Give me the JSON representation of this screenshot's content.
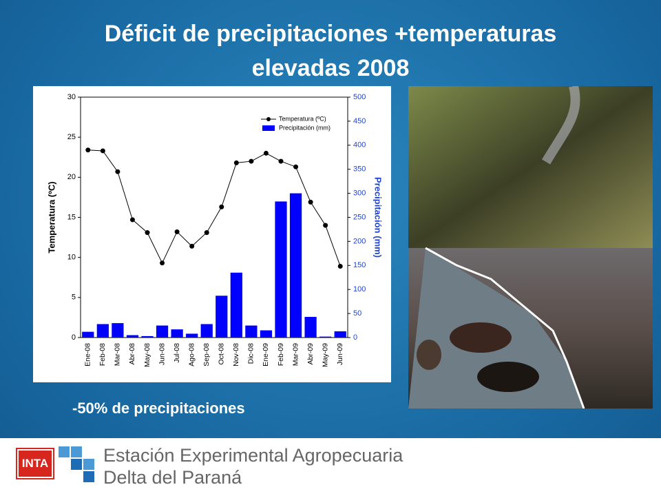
{
  "title": [
    "Déficit de precipitaciones +temperaturas",
    "elevadas 2008"
  ],
  "chart_data": {
    "type": "combo",
    "categories": [
      "Ene-08",
      "Feb-08",
      "Mar-08",
      "Abr-08",
      "May-08",
      "Jun-08",
      "Jul-08",
      "Ago-08",
      "Sep-08",
      "Oct-08",
      "Nov-08",
      "Dic-08",
      "Ene-09",
      "Feb-09",
      "Mar-09",
      "Abr-09",
      "May-09",
      "Jun-09"
    ],
    "series": [
      {
        "name": "Temperatura (ºC)",
        "type": "line",
        "color": "#000000",
        "axis": "y",
        "values": [
          23.4,
          23.3,
          20.7,
          14.7,
          13.1,
          9.3,
          13.2,
          11.4,
          13.1,
          16.3,
          21.8,
          22.0,
          23.0,
          22.0,
          21.3,
          16.9,
          14.0,
          8.9
        ]
      },
      {
        "name": "Precipitación (mm)",
        "type": "bar",
        "color": "#0000ff",
        "axis": "y2",
        "values": [
          12,
          28,
          30,
          5,
          3,
          25,
          17,
          8,
          28,
          87,
          135,
          25,
          15,
          283,
          300,
          43,
          2,
          13
        ]
      }
    ],
    "y_label": "Temperatura (ºC)",
    "y2_label": "Precipitación (mm)",
    "ylim": [
      0,
      30
    ],
    "yticks": [
      0,
      5,
      10,
      15,
      20,
      25,
      30
    ],
    "y2lim": [
      0,
      500
    ],
    "y2ticks": [
      0,
      50,
      100,
      150,
      200,
      250,
      300,
      350,
      400,
      450,
      500
    ],
    "legend": "upper right"
  },
  "caption": "-50% de precipitaciones",
  "footer": {
    "logo": "INTA",
    "line1": "Estación Experimental Agropecuaria",
    "line2": "Delta del Paraná"
  }
}
